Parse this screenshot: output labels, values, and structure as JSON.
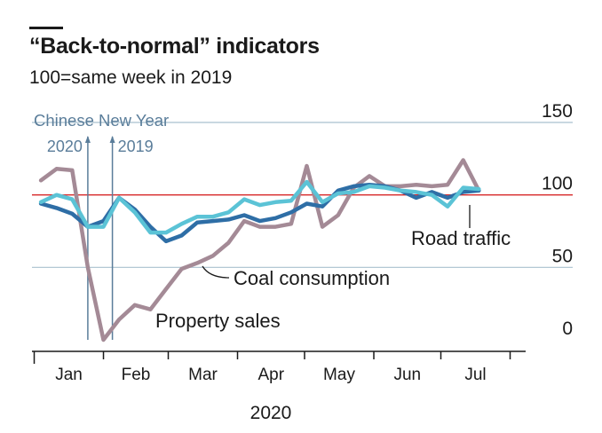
{
  "title": "“Back-to-normal” indicators",
  "subtitle": "100=same week in 2019",
  "colors": {
    "coal": "#2e6ea6",
    "road": "#5bc3d6",
    "property": "#a48a96",
    "reference_line": "#d62728",
    "grid": "#a9c1cf",
    "vline": "#5a7d9a",
    "text": "#1a1a1a"
  },
  "chart_data": {
    "type": "line",
    "title": "“Back-to-normal” indicators",
    "subtitle": "100=same week in 2019",
    "xlabel": "2020",
    "ylabel": "",
    "x_axis": {
      "range": [
        "2019-12-31",
        "2020-07-31"
      ],
      "month_labels": [
        "Jan",
        "Feb",
        "Mar",
        "Apr",
        "May",
        "Jun",
        "Jul"
      ],
      "year_label": "2020"
    },
    "y_axis": {
      "range": [
        0,
        150
      ],
      "ticks": [
        "150",
        "100",
        "50",
        "0"
      ],
      "position": "right"
    },
    "reference_line": {
      "y": 100
    },
    "event_lines": {
      "label": "Chinese New Year",
      "lines": [
        {
          "label": "2020",
          "date": "2020-01-25"
        },
        {
          "label": "2019",
          "date": "2020-02-05"
        }
      ]
    },
    "series": [
      {
        "name": "Coal consumption",
        "x": [
          "2020-01-04",
          "2020-01-11",
          "2020-01-18",
          "2020-01-25",
          "2020-02-01",
          "2020-02-08",
          "2020-02-15",
          "2020-02-22",
          "2020-02-29",
          "2020-03-07",
          "2020-03-14",
          "2020-03-21",
          "2020-03-28",
          "2020-04-04",
          "2020-04-11",
          "2020-04-18",
          "2020-04-25",
          "2020-05-02",
          "2020-05-09",
          "2020-05-16",
          "2020-05-23",
          "2020-05-30",
          "2020-06-06",
          "2020-06-13",
          "2020-06-20",
          "2020-06-27",
          "2020-07-04",
          "2020-07-11",
          "2020-07-18"
        ],
        "values": [
          94,
          91,
          87,
          78,
          82,
          98,
          90,
          78,
          68,
          72,
          81,
          82,
          83,
          86,
          82,
          84,
          88,
          94,
          92,
          103,
          106,
          107,
          106,
          103,
          98,
          102,
          98,
          102,
          103
        ]
      },
      {
        "name": "Road traffic",
        "x": [
          "2020-01-04",
          "2020-01-11",
          "2020-01-18",
          "2020-01-25",
          "2020-02-01",
          "2020-02-08",
          "2020-02-15",
          "2020-02-22",
          "2020-02-29",
          "2020-03-07",
          "2020-03-14",
          "2020-03-21",
          "2020-03-28",
          "2020-04-04",
          "2020-04-11",
          "2020-04-18",
          "2020-04-25",
          "2020-05-02",
          "2020-05-09",
          "2020-05-16",
          "2020-05-23",
          "2020-05-30",
          "2020-06-06",
          "2020-06-13",
          "2020-06-20",
          "2020-06-27",
          "2020-07-04",
          "2020-07-11",
          "2020-07-18"
        ],
        "values": [
          95,
          100,
          97,
          78,
          78,
          98,
          88,
          74,
          74,
          80,
          85,
          85,
          88,
          97,
          93,
          95,
          96,
          109,
          95,
          101,
          102,
          106,
          105,
          103,
          102,
          100,
          92,
          105,
          104
        ]
      },
      {
        "name": "Property sales",
        "x": [
          "2020-01-04",
          "2020-01-11",
          "2020-01-18",
          "2020-01-25",
          "2020-02-01",
          "2020-02-08",
          "2020-02-15",
          "2020-02-22",
          "2020-02-29",
          "2020-03-07",
          "2020-03-14",
          "2020-03-21",
          "2020-03-28",
          "2020-04-04",
          "2020-04-11",
          "2020-04-18",
          "2020-04-25",
          "2020-05-02",
          "2020-05-09",
          "2020-05-16",
          "2020-05-23",
          "2020-05-30",
          "2020-06-06",
          "2020-06-13",
          "2020-06-20",
          "2020-06-27",
          "2020-07-04",
          "2020-07-11",
          "2020-07-18"
        ],
        "values": [
          110,
          118,
          117,
          50,
          0,
          14,
          24,
          21,
          35,
          49,
          53,
          58,
          67,
          82,
          78,
          78,
          80,
          120,
          78,
          86,
          105,
          113,
          106,
          106,
          107,
          106,
          107,
          124,
          103
        ]
      }
    ],
    "annotations": [
      {
        "text": "Road traffic",
        "series": "Road traffic"
      },
      {
        "text": "Coal consumption",
        "series": "Coal consumption"
      },
      {
        "text": "Property sales",
        "series": "Property sales"
      }
    ],
    "grid": {
      "horizontal": true,
      "vertical": false
    },
    "legend": "none (inline labels)"
  }
}
